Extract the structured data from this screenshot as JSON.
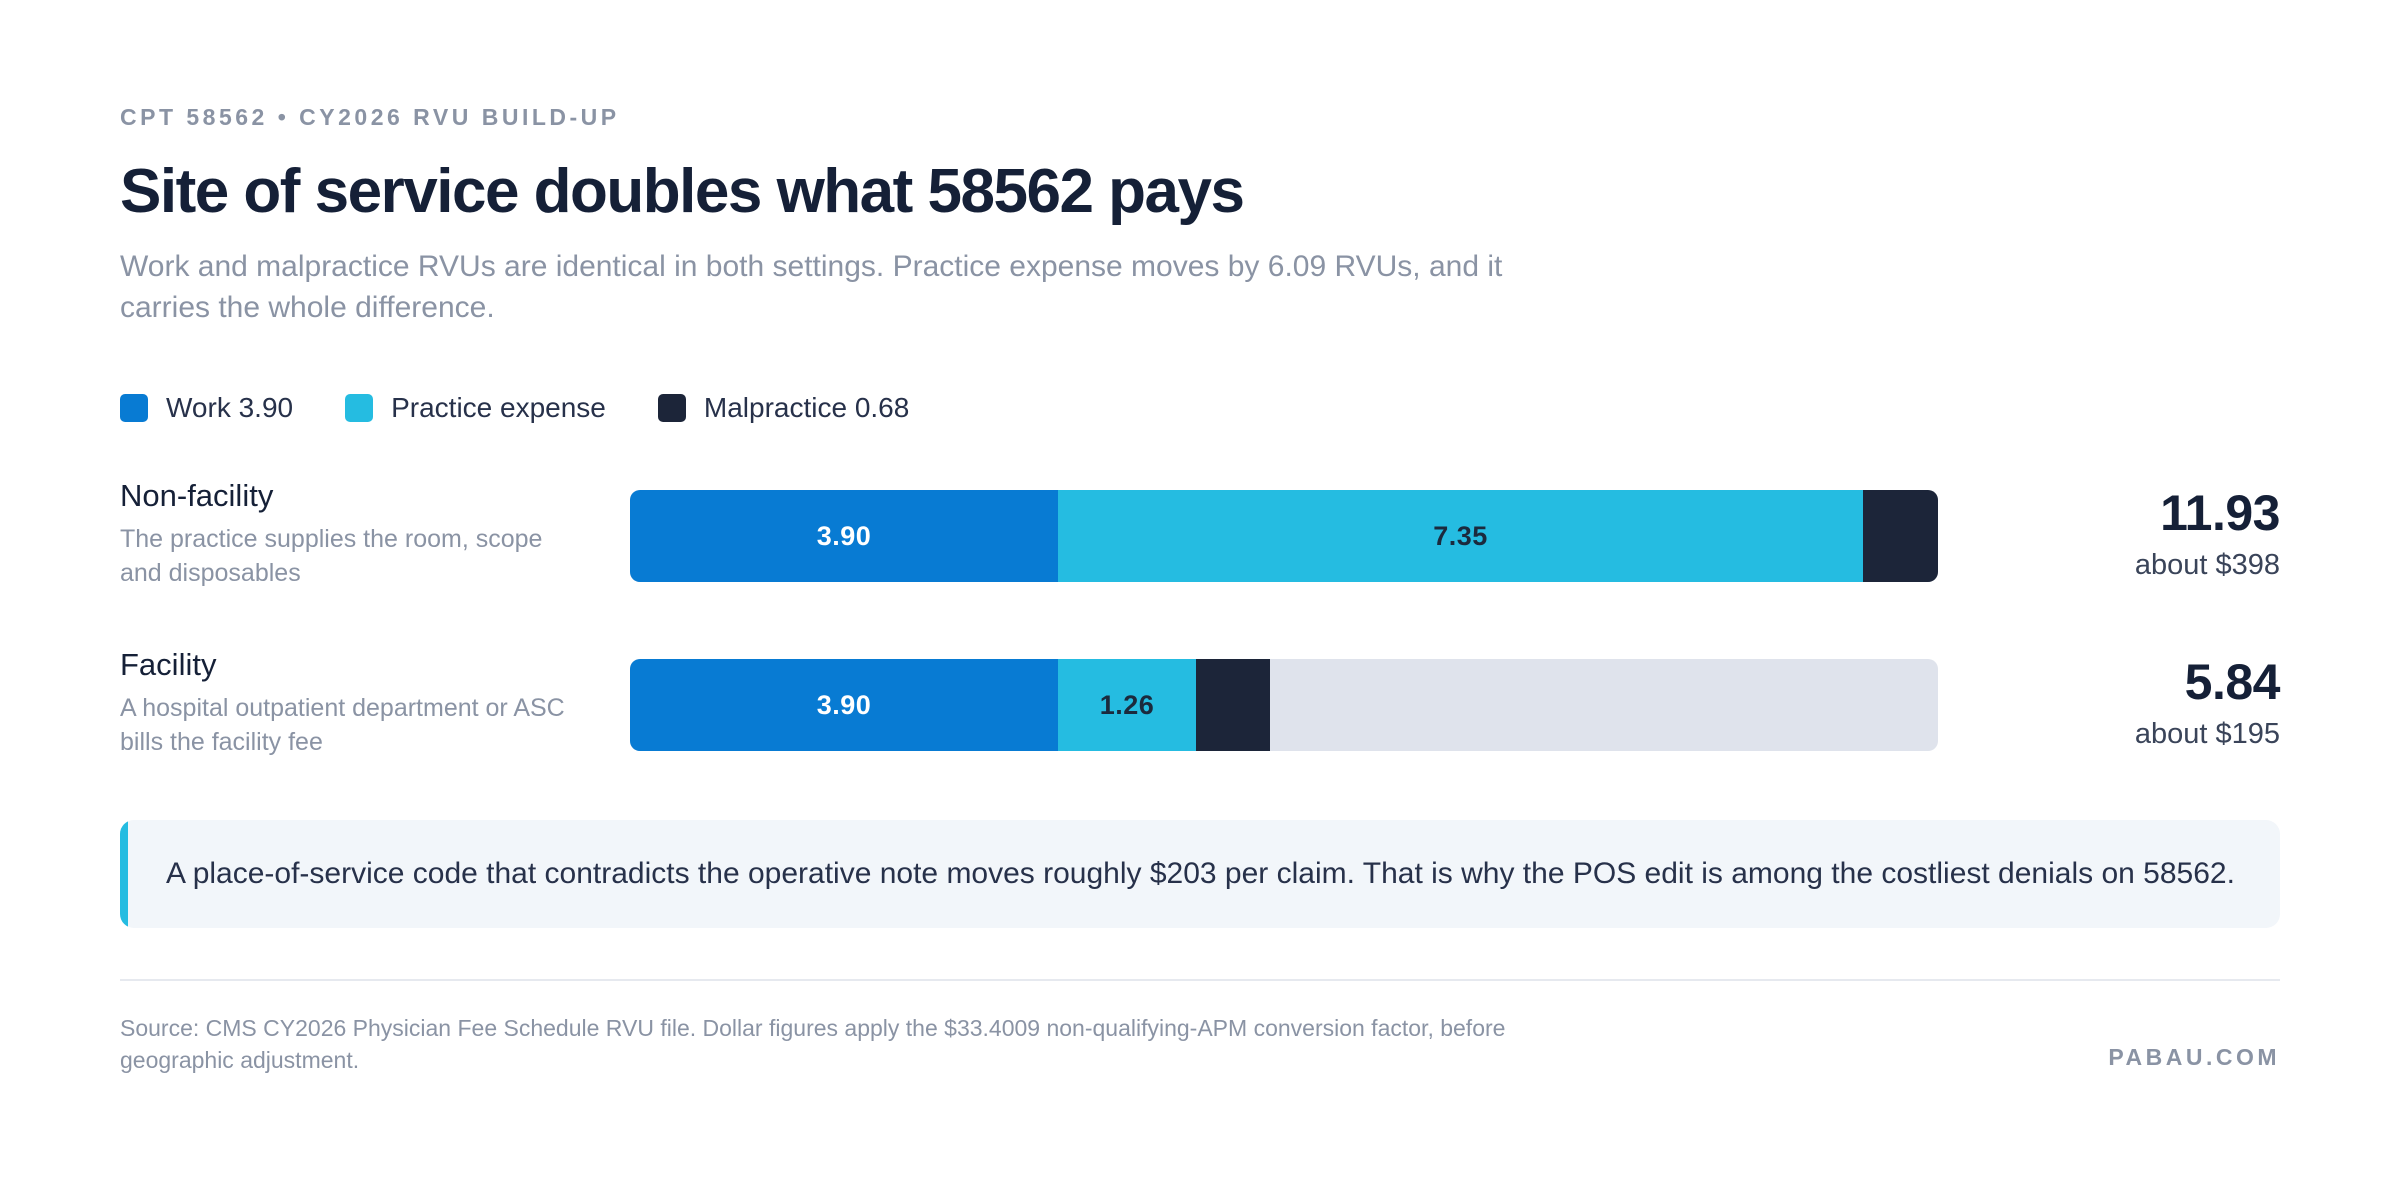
{
  "eyebrow": "CPT 58562 • CY2026 RVU BUILD-UP",
  "title": "Site of service doubles what 58562 pays",
  "subtitle": "Work and malpractice RVUs are identical in both settings. Practice expense moves by 6.09 RVUs, and it carries the whole difference.",
  "legend": [
    {
      "label": "Work 3.90",
      "color": "#087bd3"
    },
    {
      "label": "Practice expense",
      "color": "#25bce1"
    },
    {
      "label": "Malpractice 0.68",
      "color": "#1c2539"
    }
  ],
  "chart_data": {
    "type": "bar",
    "orientation": "horizontal",
    "stacked": true,
    "categories": [
      "Non-facility",
      "Facility"
    ],
    "category_descriptions": [
      "The practice supplies the room, scope and disposables",
      "A hospital outpatient department or ASC bills the facility fee"
    ],
    "series": [
      {
        "name": "Work 3.90",
        "values": [
          3.9,
          3.9
        ],
        "labels": [
          "3.90",
          "3.90"
        ],
        "color": "#087bd3"
      },
      {
        "name": "Practice expense",
        "values": [
          7.35,
          1.26
        ],
        "labels": [
          "7.35",
          "1.26"
        ],
        "color": "#25bce1"
      },
      {
        "name": "Malpractice 0.68",
        "values": [
          0.68,
          0.68
        ],
        "labels": [
          "",
          ""
        ],
        "color": "#1c2539"
      }
    ],
    "xlim": [
      0,
      11.93
    ],
    "totals": [
      "11.93",
      "5.84"
    ],
    "totals_dollars": [
      "about $398",
      "about $195"
    ],
    "track_color": "#dfe3ec",
    "grid": false,
    "legend_position": "top-left"
  },
  "callout": "A place-of-service code that contradicts the operative note moves roughly $203 per claim. That is why the POS edit is among the costliest denials on 58562.",
  "source": "Source: CMS CY2026 Physician Fee Schedule RVU file. Dollar figures apply the $33.4009 non-qualifying-APM conversion factor, before geographic adjustment.",
  "brand": "PABAU.COM"
}
